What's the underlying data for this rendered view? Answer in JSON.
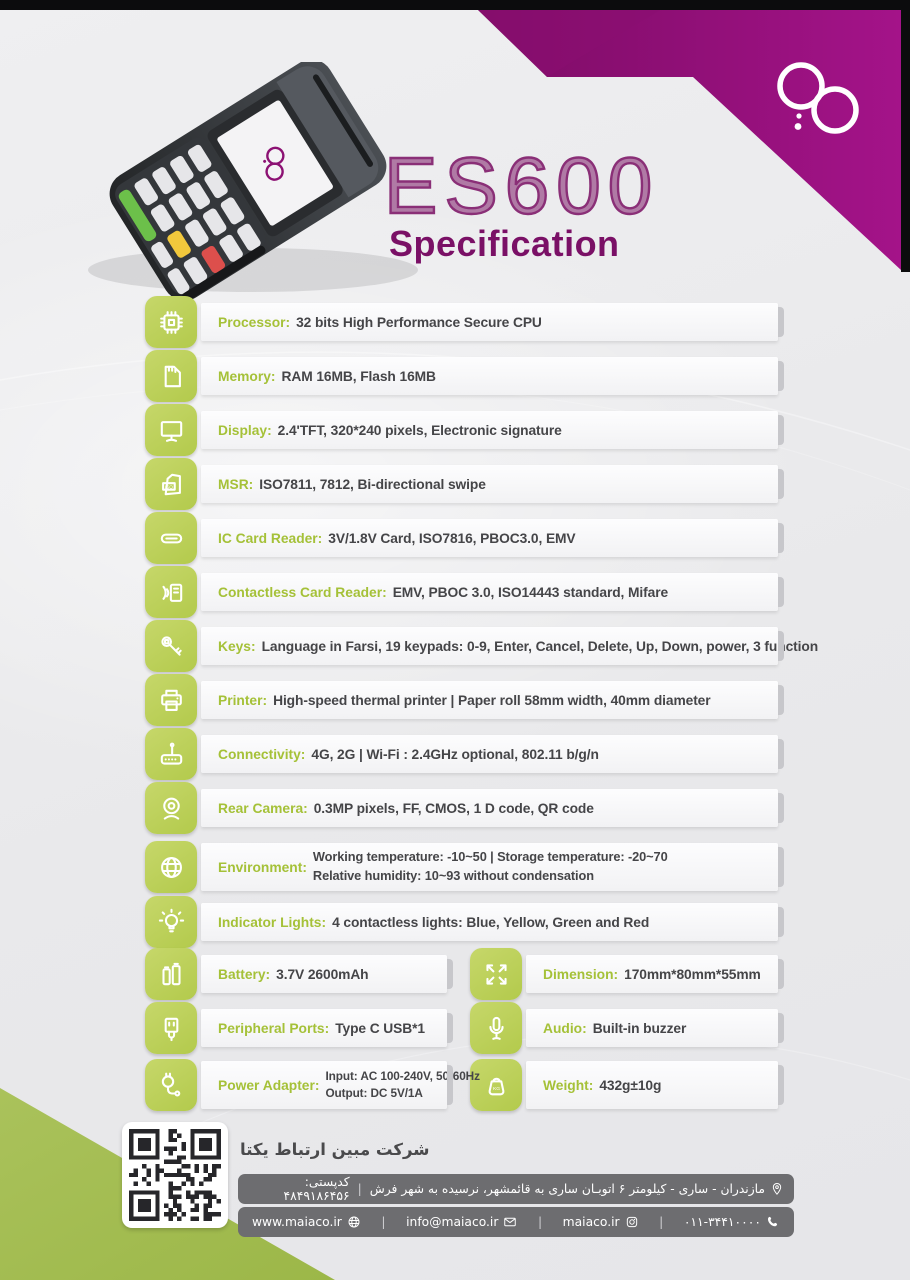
{
  "header": {
    "title": "ES600",
    "subtitle": "Specification",
    "brand_logo": "mobin-interlocked-rings-logo",
    "colors": {
      "purple_dark": "#830d6a",
      "purple_light": "#a21489",
      "green": "#a4bd52",
      "tile_green": "#bcd05b"
    }
  },
  "device": {
    "name": "ES600 POS terminal photo"
  },
  "specs": {
    "rows": [
      {
        "cols": [
          {
            "icon": "processor",
            "label": "Processor:",
            "value": "32 bits High Performance Secure CPU"
          }
        ]
      },
      {
        "cols": [
          {
            "icon": "memory",
            "label": "Memory:",
            "value": "RAM 16MB, Flash 16MB"
          }
        ]
      },
      {
        "cols": [
          {
            "icon": "display",
            "label": "Display:",
            "value": "2.4'TFT, 320*240 pixels, Electronic signature"
          }
        ]
      },
      {
        "cols": [
          {
            "icon": "msr",
            "label": "MSR:",
            "value": "ISO7811, 7812, Bi-directional swipe"
          }
        ]
      },
      {
        "cols": [
          {
            "icon": "ic-card-reader",
            "label": "IC Card Reader:",
            "value": "3V/1.8V Card, ISO7816, PBOC3.0, EMV"
          }
        ]
      },
      {
        "cols": [
          {
            "icon": "contactless-card-reader",
            "label": "Contactless Card Reader:",
            "value": "EMV, PBOC 3.0, ISO14443 standard, Mifare"
          }
        ]
      },
      {
        "cols": [
          {
            "icon": "keys",
            "label": "Keys:",
            "value": "Language in Farsi, 19 keypads: 0-9, Enter, Cancel, Delete, Up, Down, power, 3 function"
          }
        ]
      },
      {
        "cols": [
          {
            "icon": "printer",
            "label": "Printer:",
            "value": "High-speed thermal printer  |  Paper roll 58mm width, 40mm diameter"
          }
        ]
      },
      {
        "cols": [
          {
            "icon": "connectivity",
            "label": "Connectivity:",
            "value": "4G, 2G  |  Wi-Fi : 2.4GHz optional, 802.11 b/g/n"
          }
        ]
      },
      {
        "cols": [
          {
            "icon": "rear-camera",
            "label": "Rear Camera:",
            "value": "0.3MP pixels, FF, CMOS, 1 D code, QR code"
          }
        ]
      },
      {
        "tall": true,
        "cols": [
          {
            "icon": "environment",
            "label": "Environment:",
            "lines": [
              "Working temperature: -10~50  |  Storage temperature: -20~70",
              "Relative humidity: 10~93 without condensation"
            ]
          }
        ]
      },
      {
        "gap": "sm",
        "cols": [
          {
            "icon": "indicator-lights",
            "label": "Indicator Lights:",
            "value": "4 contactless lights: Blue, Yellow, Green and Red"
          }
        ]
      },
      {
        "cols": [
          {
            "icon": "battery",
            "label": "Battery:",
            "value": "3.7V 2600mAh"
          },
          {
            "icon": "dimension",
            "label": "Dimension:",
            "value": "170mm*80mm*55mm"
          }
        ]
      },
      {
        "gap": "sm",
        "cols": [
          {
            "icon": "peripheral-ports",
            "label": "Peripheral Ports:",
            "value": "Type C USB*1"
          },
          {
            "icon": "audio",
            "label": "Audio:",
            "value": "Built-in buzzer"
          }
        ]
      },
      {
        "tall": true,
        "cols": [
          {
            "icon": "power-adapter",
            "label": "Power Adapter:",
            "lines_small": [
              "Input: AC 100-240V, 50-60Hz",
              "Output: DC 5V/1A"
            ]
          },
          {
            "icon": "weight",
            "label": "Weight:",
            "value": "432g±10g"
          }
        ]
      }
    ]
  },
  "footer": {
    "qr": "qr-code",
    "company_name": "شرکت مبین ارتباط یکتا",
    "address": "مازندران - ساری - کیلومتر ۶ اتوبـان ساری به قائمشهر، نرسیده به شهر فرش",
    "postal_code": "کدپستی: ۴۸۴۹۱۸۶۴۵۶",
    "website": "www.maiaco.ir",
    "email": "info@maiaco.ir",
    "instagram": "maiaco.ir",
    "phone": "۰۱۱-۳۴۴۱۰۰۰۰"
  }
}
